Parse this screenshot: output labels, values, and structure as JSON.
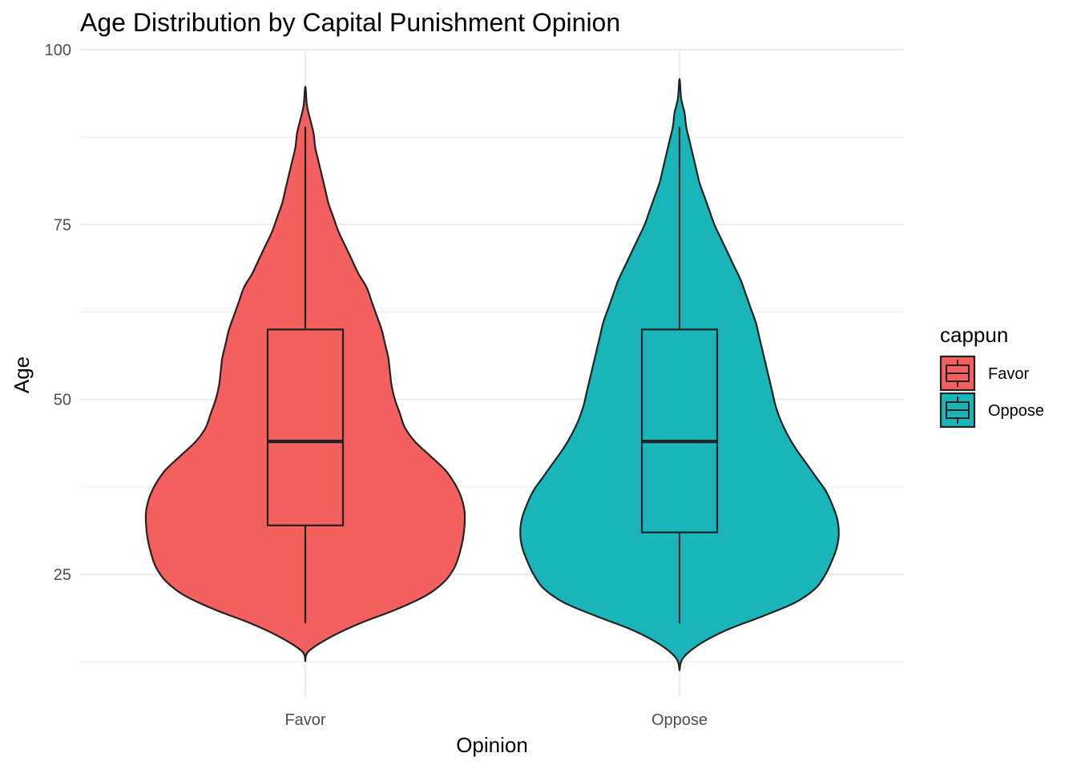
{
  "chart_data": {
    "type": "violin",
    "title": "Age Distribution by Capital Punishment Opinion",
    "xlabel": "Opinion",
    "ylabel": "Age",
    "categories": [
      "Favor",
      "Oppose"
    ],
    "ylim": [
      12,
      100
    ],
    "yticks": [
      25,
      50,
      75,
      100
    ],
    "y_minor": [
      12.5,
      37.5,
      62.5,
      87.5
    ],
    "grid": true,
    "legend": {
      "title": "cappun",
      "position": "right",
      "entries": [
        "Favor",
        "Oppose"
      ]
    },
    "colors": {
      "Favor": "#F4605E",
      "Oppose": "#19B5B9"
    },
    "series": [
      {
        "name": "Favor",
        "box": {
          "whisker_low": 18,
          "q1": 32,
          "median": 44,
          "q3": 60,
          "whisker_high": 89
        },
        "violin": {
          "y": [
            12.6,
            14,
            16,
            18,
            20,
            22,
            24,
            26,
            28,
            30,
            32,
            34,
            36,
            38,
            40,
            42,
            44,
            46,
            48,
            50,
            52,
            54,
            56,
            58,
            60,
            62,
            64,
            66,
            68,
            70,
            72,
            74,
            76,
            78,
            80,
            82,
            84,
            86,
            88,
            90,
            92,
            94.7
          ],
          "width": [
            0.0,
            0.02,
            0.15,
            0.33,
            0.55,
            0.73,
            0.84,
            0.9,
            0.93,
            0.95,
            0.96,
            0.96,
            0.94,
            0.9,
            0.84,
            0.75,
            0.66,
            0.6,
            0.57,
            0.54,
            0.52,
            0.51,
            0.5,
            0.48,
            0.46,
            0.43,
            0.4,
            0.37,
            0.32,
            0.28,
            0.24,
            0.2,
            0.17,
            0.14,
            0.12,
            0.1,
            0.08,
            0.06,
            0.05,
            0.03,
            0.01,
            0.0
          ]
        }
      },
      {
        "name": "Oppose",
        "box": {
          "whisker_low": 18,
          "q1": 31,
          "median": 44,
          "q3": 60,
          "whisker_high": 89
        },
        "violin": {
          "y": [
            11.3,
            13,
            15,
            17,
            19,
            21,
            23,
            25,
            27,
            29,
            31,
            33,
            35,
            37,
            39,
            41,
            43,
            45,
            47,
            49,
            51,
            53,
            55,
            57,
            59,
            61,
            63,
            65,
            67,
            69,
            71,
            73,
            75,
            77,
            79,
            81,
            83,
            85,
            87,
            89,
            91,
            93,
            95.8
          ],
          "width": [
            0.0,
            0.02,
            0.12,
            0.28,
            0.5,
            0.7,
            0.82,
            0.88,
            0.92,
            0.95,
            0.96,
            0.95,
            0.92,
            0.88,
            0.82,
            0.76,
            0.7,
            0.65,
            0.61,
            0.58,
            0.56,
            0.54,
            0.52,
            0.5,
            0.48,
            0.46,
            0.43,
            0.4,
            0.37,
            0.33,
            0.29,
            0.25,
            0.21,
            0.18,
            0.15,
            0.12,
            0.1,
            0.08,
            0.06,
            0.04,
            0.03,
            0.01,
            0.0
          ]
        }
      }
    ]
  }
}
